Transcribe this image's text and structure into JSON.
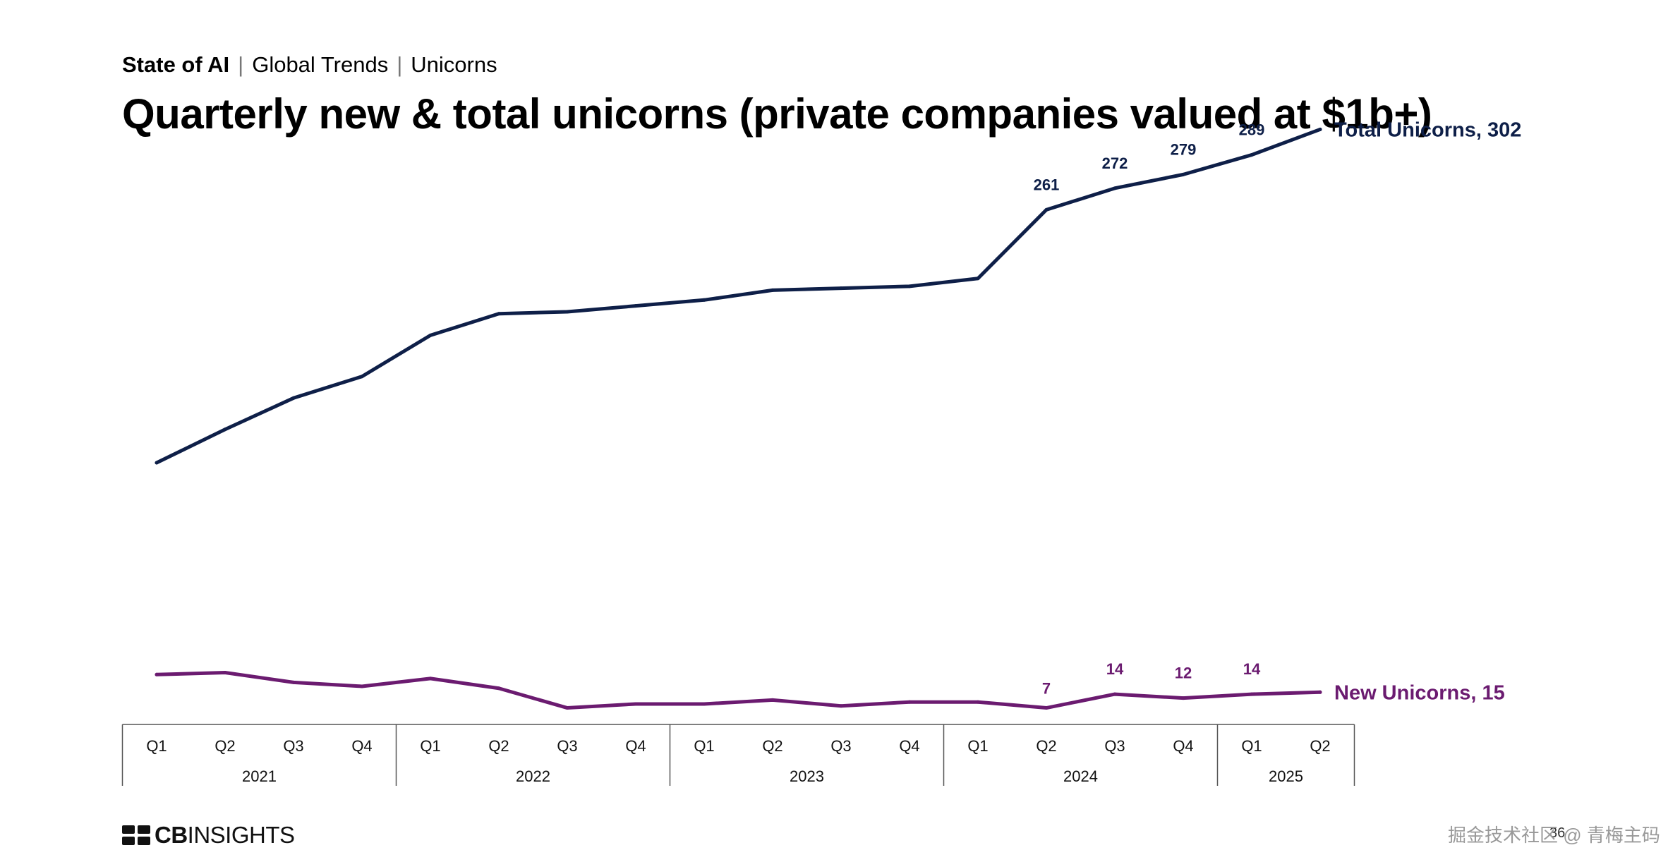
{
  "header": {
    "breadcrumb": [
      "State of AI",
      "Global Trends",
      "Unicorns"
    ],
    "title": "Quarterly new & total unicorns (private companies valued at $1b+)"
  },
  "chart_data": {
    "type": "line",
    "title": "Quarterly new & total unicorns (private companies valued at $1b+)",
    "xlabel": "",
    "ylabel": "",
    "x": [
      "Q1",
      "Q2",
      "Q3",
      "Q4",
      "Q1",
      "Q2",
      "Q3",
      "Q4",
      "Q1",
      "Q2",
      "Q3",
      "Q4",
      "Q1",
      "Q2",
      "Q3",
      "Q4",
      "Q1",
      "Q2"
    ],
    "year_groups": [
      {
        "label": "2021",
        "quarters": 4
      },
      {
        "label": "2022",
        "quarters": 4
      },
      {
        "label": "2023",
        "quarters": 4
      },
      {
        "label": "2024",
        "quarters": 4
      },
      {
        "label": "2025",
        "quarters": 2
      }
    ],
    "ylim": [
      0,
      320
    ],
    "grid": false,
    "legend": "end-of-line labels",
    "series": [
      {
        "name": "Total Unicorns",
        "end_label": "Total Unicorns, 302",
        "color": "#0e1f48",
        "values": [
          132,
          149,
          165,
          176,
          197,
          208,
          209,
          212,
          215,
          220,
          221,
          222,
          226,
          261,
          272,
          279,
          289,
          302
        ],
        "data_labels": [
          null,
          null,
          null,
          null,
          null,
          null,
          null,
          null,
          null,
          null,
          null,
          null,
          null,
          "261",
          "272",
          "279",
          "289",
          null
        ]
      },
      {
        "name": "New Unicorns",
        "end_label": "New Unicorns, 15",
        "color": "#6b1b70",
        "values": [
          24,
          25,
          20,
          18,
          22,
          17,
          7,
          9,
          9,
          11,
          8,
          10,
          10,
          7,
          14,
          12,
          14,
          15
        ],
        "data_labels": [
          null,
          null,
          null,
          null,
          null,
          null,
          null,
          null,
          null,
          null,
          null,
          null,
          null,
          "7",
          "14",
          "12",
          "14",
          null
        ]
      }
    ]
  },
  "footer": {
    "logo_text_bold": "CB",
    "logo_text": "INSIGHTS",
    "page_number": "36",
    "watermark": "掘金技术社区 @ 青梅主码"
  }
}
